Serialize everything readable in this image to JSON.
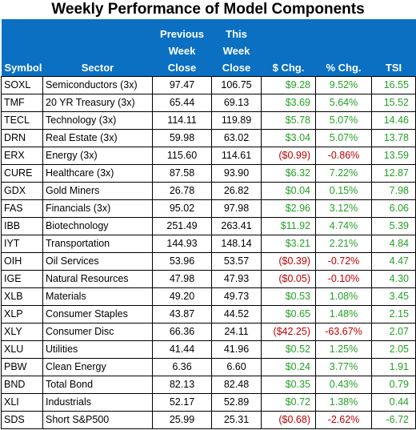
{
  "title": "Weekly Performance of Model Components",
  "colors": {
    "header_bg": "#0b70c2",
    "header_text": "#ffffff",
    "positive": "#24a124",
    "negative": "#c00000"
  },
  "columns": {
    "symbol": "Symbol",
    "sector": "Sector",
    "prev": [
      "Previous",
      "Week",
      "Close"
    ],
    "this": [
      "This",
      "Week",
      "Close"
    ],
    "chg": "$ Chg.",
    "pct": "% Chg.",
    "tsi": "TSI"
  },
  "rows": [
    {
      "symbol": "SOXL",
      "sector": "Semiconductors (3x)",
      "prev": "97.47",
      "this": "106.75",
      "chg": "$9.28",
      "pct": "9.52%",
      "tsi": "16.55",
      "neg": false
    },
    {
      "symbol": "TMF",
      "sector": "20 YR Treasury (3x)",
      "prev": "65.44",
      "this": "69.13",
      "chg": "$3.69",
      "pct": "5.64%",
      "tsi": "15.52",
      "neg": false
    },
    {
      "symbol": "TECL",
      "sector": "Technology (3x)",
      "prev": "114.11",
      "this": "119.89",
      "chg": "$5.78",
      "pct": "5.07%",
      "tsi": "14.46",
      "neg": false
    },
    {
      "symbol": "DRN",
      "sector": "Real Estate (3x)",
      "prev": "59.98",
      "this": "63.02",
      "chg": "$3.04",
      "pct": "5.07%",
      "tsi": "13.78",
      "neg": false
    },
    {
      "symbol": "ERX",
      "sector": "Energy (3x)",
      "prev": "115.60",
      "this": "114.61",
      "chg": "($0.99)",
      "pct": "-0.86%",
      "tsi": "13.59",
      "neg": true
    },
    {
      "symbol": "CURE",
      "sector": "Healthcare (3x)",
      "prev": "87.58",
      "this": "93.90",
      "chg": "$6.32",
      "pct": "7.22%",
      "tsi": "12.87",
      "neg": false
    },
    {
      "symbol": "GDX",
      "sector": "Gold Miners",
      "prev": "26.78",
      "this": "26.82",
      "chg": "$0.04",
      "pct": "0.15%",
      "tsi": "7.98",
      "neg": false
    },
    {
      "symbol": "FAS",
      "sector": "Financials (3x)",
      "prev": "95.02",
      "this": "97.98",
      "chg": "$2.96",
      "pct": "3.12%",
      "tsi": "6.06",
      "neg": false
    },
    {
      "symbol": "IBB",
      "sector": "Biotechnology",
      "prev": "251.49",
      "this": "263.41",
      "chg": "$11.92",
      "pct": "4.74%",
      "tsi": "5.39",
      "neg": false
    },
    {
      "symbol": "IYT",
      "sector": "Transportation",
      "prev": "144.93",
      "this": "148.14",
      "chg": "$3.21",
      "pct": "2.21%",
      "tsi": "4.84",
      "neg": false
    },
    {
      "symbol": "OIH",
      "sector": "Oil Services",
      "prev": "53.96",
      "this": "53.57",
      "chg": "($0.39)",
      "pct": "-0.72%",
      "tsi": "4.47",
      "neg": true
    },
    {
      "symbol": "IGE",
      "sector": "Natural Resources",
      "prev": "47.98",
      "this": "47.93",
      "chg": "($0.05)",
      "pct": "-0.10%",
      "tsi": "4.30",
      "neg": true
    },
    {
      "symbol": "XLB",
      "sector": "Materials",
      "prev": "49.20",
      "this": "49.73",
      "chg": "$0.53",
      "pct": "1.08%",
      "tsi": "3.45",
      "neg": false
    },
    {
      "symbol": "XLP",
      "sector": "Consumer Staples",
      "prev": "43.87",
      "this": "44.52",
      "chg": "$0.65",
      "pct": "1.48%",
      "tsi": "2.15",
      "neg": false
    },
    {
      "symbol": "XLY",
      "sector": "Consumer Disc",
      "prev": "66.36",
      "this": "24.11",
      "chg": "($42.25)",
      "pct": "-63.67%",
      "tsi": "2.07",
      "neg": true
    },
    {
      "symbol": "XLU",
      "sector": "Utilities",
      "prev": "41.44",
      "this": "41.96",
      "chg": "$0.52",
      "pct": "1.25%",
      "tsi": "2.05",
      "neg": false
    },
    {
      "symbol": "PBW",
      "sector": "Clean Energy",
      "prev": "6.36",
      "this": "6.60",
      "chg": "$0.24",
      "pct": "3.77%",
      "tsi": "1.91",
      "neg": false
    },
    {
      "symbol": "BND",
      "sector": "Total Bond",
      "prev": "82.13",
      "this": "82.48",
      "chg": "$0.35",
      "pct": "0.43%",
      "tsi": "0.79",
      "neg": false
    },
    {
      "symbol": "XLI",
      "sector": "Industrials",
      "prev": "52.17",
      "this": "52.89",
      "chg": "$0.72",
      "pct": "1.38%",
      "tsi": "0.44",
      "neg": false
    },
    {
      "symbol": "SDS",
      "sector": "Short S&P500",
      "prev": "25.99",
      "this": "25.31",
      "chg": "($0.68)",
      "pct": "-2.62%",
      "tsi": "-6.72",
      "neg": true
    }
  ]
}
